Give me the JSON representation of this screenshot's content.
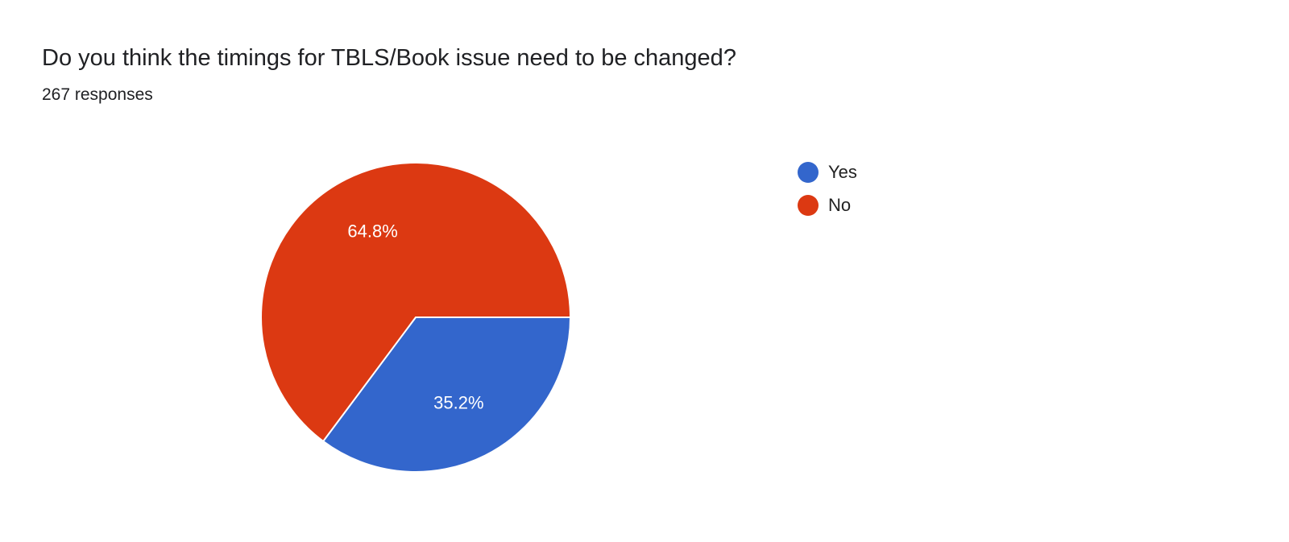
{
  "header": {
    "title": "Do you think the timings for TBLS/Book issue need to be changed?",
    "responses": "267 responses"
  },
  "chart_data": {
    "type": "pie",
    "categories": [
      "Yes",
      "No"
    ],
    "values": [
      35.2,
      64.8
    ],
    "labels": [
      "35.2%",
      "64.8%"
    ],
    "colors": [
      "#3366CC",
      "#DC3912"
    ],
    "legend": [
      "Yes",
      "No"
    ],
    "legend_position": "right",
    "start_angle": "3 o'clock, clockwise"
  }
}
